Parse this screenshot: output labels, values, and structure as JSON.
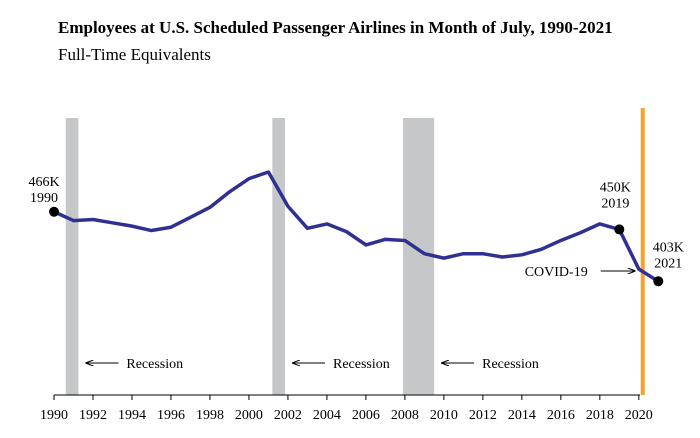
{
  "chart_data": {
    "type": "line",
    "title": "Employees at U.S. Scheduled Passenger Airlines in Month of July, 1990-2021",
    "subtitle": "Full-Time Equivalents",
    "xlabel": "",
    "ylabel": "",
    "xlim": [
      1990,
      2021.6
    ],
    "ylim": [
      300,
      560
    ],
    "x_ticks": [
      "1990",
      "1992",
      "1994",
      "1996",
      "1998",
      "2000",
      "2002",
      "2004",
      "2006",
      "2008",
      "2010",
      "2012",
      "2014",
      "2016",
      "2018",
      "2020"
    ],
    "grid": false,
    "legend": "none",
    "series": [
      {
        "color": "#2e3192",
        "x": [
          1990,
          1991,
          1992,
          1993,
          1994,
          1995,
          1996,
          1997,
          1998,
          1999,
          2000,
          2001,
          2002,
          2003,
          2004,
          2005,
          2006,
          2007,
          2008,
          2009,
          2010,
          2011,
          2012,
          2013,
          2014,
          2015,
          2016,
          2017,
          2018,
          2019,
          2020,
          2021
        ],
        "values": [
          466,
          458,
          459,
          456,
          453,
          449,
          452,
          461,
          470,
          484,
          496,
          502,
          471,
          451,
          455,
          448,
          436,
          441,
          440,
          428,
          424,
          428,
          428,
          425,
          427,
          432,
          440,
          447,
          455,
          450,
          414,
          403
        ]
      }
    ],
    "recessions": [
      {
        "start": 1990.6,
        "end": 1991.25,
        "label": "Recession"
      },
      {
        "start": 2001.2,
        "end": 2001.85,
        "label": "Recession"
      },
      {
        "start": 2007.9,
        "end": 2009.5,
        "label": "Recession"
      }
    ],
    "annotations": [
      {
        "x": 1990,
        "y": 466,
        "value_label": "466K",
        "year_label": "1990"
      },
      {
        "x": 2019,
        "y": 450,
        "value_label": "450K",
        "year_label": "2019"
      },
      {
        "x": 2021,
        "y": 403,
        "value_label": "403K",
        "year_label": "2021"
      }
    ],
    "event_line": {
      "x": 2020.2,
      "label": "COVID-19",
      "color": "#f7a12a"
    },
    "recession_color": "#c6c7c9"
  }
}
